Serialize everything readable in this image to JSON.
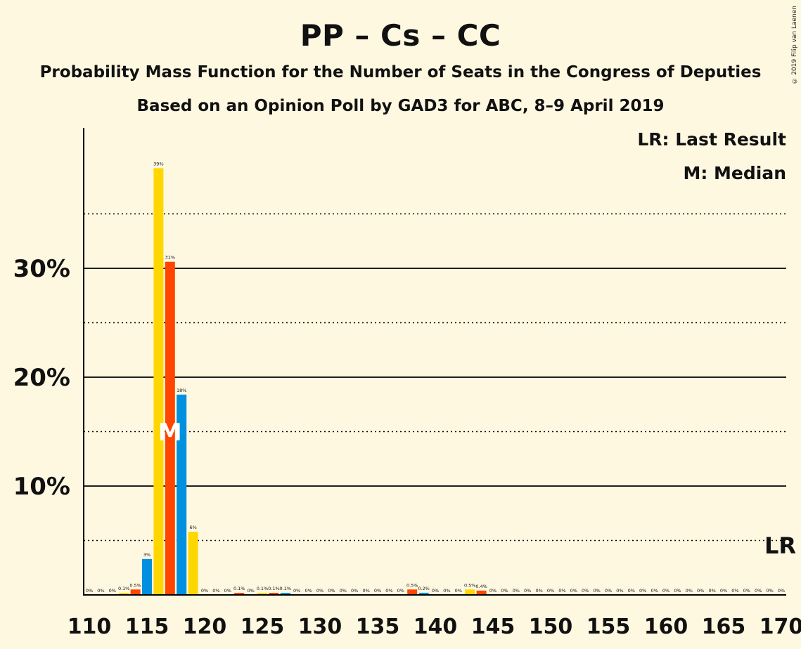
{
  "title": "PP – Cs – CC",
  "subtitle": "Probability Mass Function for the Number of Seats in the Congress of Deputies",
  "subtitle2": "Based on an Opinion Poll by GAD3 for ABC, 8–9 April 2019",
  "copyright": "© 2019 Filip van Laenen",
  "legend": {
    "last_result": "LR: Last Result",
    "median": "M: Median"
  },
  "markers": {
    "median_label": "M",
    "median_seat": 117,
    "last_result_label": "LR",
    "last_result_seat": 170
  },
  "colors": {
    "background": "#fff8e1",
    "yellow": "#ffd700",
    "orange": "#ff4500",
    "blue": "#0090e0"
  },
  "chart_data": {
    "type": "bar",
    "x_range": [
      110,
      170
    ],
    "x_ticks": [
      110,
      115,
      120,
      125,
      130,
      135,
      140,
      145,
      150,
      155,
      160,
      165,
      170
    ],
    "y_ticks": [
      {
        "value": 10,
        "label": "10%"
      },
      {
        "value": 20,
        "label": "20%"
      },
      {
        "value": 30,
        "label": "30%"
      }
    ],
    "ylim": [
      0,
      43
    ],
    "minor_gridlines": [
      5,
      15,
      25,
      35
    ],
    "seats": [
      110,
      111,
      112,
      113,
      114,
      115,
      116,
      117,
      118,
      119,
      120,
      121,
      122,
      123,
      124,
      125,
      126,
      127,
      128,
      129,
      130,
      131,
      132,
      133,
      134,
      135,
      136,
      137,
      138,
      139,
      140,
      141,
      142,
      143,
      144,
      145,
      146,
      147,
      148,
      149,
      150,
      151,
      152,
      153,
      154,
      155,
      156,
      157,
      158,
      159,
      160,
      161,
      162,
      163,
      164,
      165,
      166,
      167,
      168,
      169,
      170
    ],
    "values": [
      0,
      0,
      0,
      0.1,
      0.5,
      3.3,
      39.2,
      30.6,
      18.4,
      5.8,
      0,
      0,
      0,
      0.1,
      0,
      0.1,
      0.1,
      0.1,
      0,
      0,
      0,
      0,
      0,
      0,
      0,
      0,
      0,
      0,
      0.5,
      0.2,
      0,
      0,
      0,
      0.5,
      0.4,
      0,
      0,
      0,
      0,
      0,
      0,
      0,
      0,
      0,
      0,
      0,
      0,
      0,
      0,
      0,
      0,
      0,
      0,
      0,
      0,
      0,
      0,
      0,
      0,
      0,
      0
    ],
    "labels": [
      "0%",
      "0%",
      "0%",
      "0.1%",
      "0.5%",
      "3%",
      "39%",
      "31%",
      "18%",
      "6%",
      "0%",
      "0%",
      "0%",
      "0.1%",
      "0%",
      "0.1%",
      "0.1%",
      "0.1%",
      "0%",
      "0%",
      "0%",
      "0%",
      "0%",
      "0%",
      "0%",
      "0%",
      "0%",
      "0%",
      "0.5%",
      "0.2%",
      "0%",
      "0%",
      "0%",
      "0.5%",
      "0.4%",
      "0%",
      "0%",
      "0%",
      "0%",
      "0%",
      "0%",
      "0%",
      "0%",
      "0%",
      "0%",
      "0%",
      "0%",
      "0%",
      "0%",
      "0%",
      "0%",
      "0%",
      "0%",
      "0%",
      "0%",
      "0%",
      "0%",
      "0%",
      "0%",
      "0%",
      "0%"
    ]
  }
}
